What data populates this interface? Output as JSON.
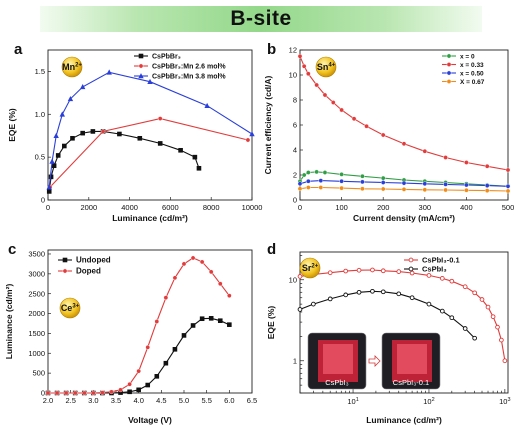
{
  "header": {
    "title": "B-site"
  },
  "colors": {
    "black": "#111111",
    "red": "#e23b3b",
    "blue": "#2a3fd8",
    "green": "#2f9e44",
    "orange": "#f08c1a",
    "grid": "#cccccc"
  },
  "panels": {
    "a": {
      "label": "a",
      "badge": "Mn2+",
      "chart_data": {
        "type": "line",
        "xlabel": "Luminance (cd/m²)",
        "ylabel": "EQE (%)",
        "xlim": [
          0,
          10000
        ],
        "ylim": [
          0,
          1.75
        ],
        "xticks": [
          0,
          2000,
          4000,
          6000,
          8000,
          10000
        ],
        "xtick_labels": [
          "0",
          "2000",
          "4000",
          "6000",
          "8000",
          "10000"
        ],
        "yticks": [
          0,
          0.5,
          1.0,
          1.5
        ],
        "ytick_labels": [
          "0",
          "0.5",
          "1.0",
          "1.5"
        ],
        "legend_position": "top-right",
        "series": [
          {
            "name": "CsPbBr₃",
            "color": "black",
            "marker": "square",
            "x": [
              60,
              150,
              300,
              500,
              800,
              1200,
              1700,
              2200,
              2700,
              3500,
              4500,
              5500,
              6500,
              7200,
              7400
            ],
            "y": [
              0.1,
              0.27,
              0.4,
              0.52,
              0.63,
              0.72,
              0.78,
              0.8,
              0.8,
              0.77,
              0.72,
              0.66,
              0.58,
              0.5,
              0.37
            ]
          },
          {
            "name": "CsPbBr₃:Mn 2.6 mol%",
            "color": "red",
            "marker": "circle",
            "x": [
              100,
              2700,
              5500,
              9800
            ],
            "y": [
              0.15,
              0.8,
              0.95,
              0.7
            ]
          },
          {
            "name": "CsPbBr₃:Mn 3.8 mol%",
            "color": "blue",
            "marker": "triangle",
            "x": [
              60,
              200,
              400,
              700,
              1100,
              1700,
              3000,
              5000,
              7800,
              10000
            ],
            "y": [
              0.15,
              0.45,
              0.75,
              1.0,
              1.18,
              1.32,
              1.49,
              1.38,
              1.1,
              0.77
            ]
          }
        ]
      }
    },
    "b": {
      "label": "b",
      "badge": "Sn4+",
      "chart_data": {
        "type": "line",
        "xlabel": "Current density (mA/cm²)",
        "ylabel": "Current efficiency (cd/A)",
        "xlim": [
          0,
          500
        ],
        "ylim": [
          0,
          12
        ],
        "xticks": [
          0,
          100,
          200,
          300,
          400,
          500
        ],
        "xtick_labels": [
          "0",
          "100",
          "200",
          "300",
          "400",
          "500"
        ],
        "yticks": [
          0,
          2,
          4,
          6,
          8,
          10,
          12
        ],
        "ytick_labels": [
          "0",
          "2",
          "4",
          "6",
          "8",
          "10",
          "12"
        ],
        "legend_position": "top-right",
        "series": [
          {
            "name": "x = 0",
            "color": "green",
            "marker": "circle",
            "x": [
              0,
              10,
              20,
              40,
              60,
              100,
              150,
              200,
              250,
              300,
              350,
              400,
              450,
              500
            ],
            "y": [
              1.5,
              2.0,
              2.2,
              2.25,
              2.2,
              2.05,
              1.9,
              1.75,
              1.6,
              1.5,
              1.4,
              1.3,
              1.2,
              1.1
            ]
          },
          {
            "name": "x = 0.33",
            "color": "red",
            "marker": "circle",
            "x": [
              0,
              10,
              20,
              40,
              60,
              80,
              100,
              130,
              160,
              200,
              250,
              300,
              350,
              400,
              450,
              500
            ],
            "y": [
              11.5,
              10.7,
              10.1,
              9.2,
              8.4,
              7.8,
              7.2,
              6.5,
              5.9,
              5.2,
              4.5,
              3.9,
              3.4,
              3.0,
              2.7,
              2.4
            ]
          },
          {
            "name": "x = 0.50",
            "color": "blue",
            "marker": "circle",
            "x": [
              0,
              20,
              50,
              100,
              150,
              200,
              250,
              300,
              350,
              400,
              450,
              500
            ],
            "y": [
              1.3,
              1.5,
              1.55,
              1.5,
              1.45,
              1.4,
              1.35,
              1.3,
              1.25,
              1.2,
              1.15,
              1.1
            ]
          },
          {
            "name": "X = 0.67",
            "color": "orange",
            "marker": "circle",
            "x": [
              0,
              20,
              50,
              100,
              150,
              200,
              250,
              300,
              350,
              400,
              450,
              500
            ],
            "y": [
              0.9,
              1.0,
              1.0,
              0.95,
              0.9,
              0.88,
              0.85,
              0.82,
              0.8,
              0.78,
              0.75,
              0.72
            ]
          }
        ]
      }
    },
    "c": {
      "label": "c",
      "badge": "Ce3+",
      "chart_data": {
        "type": "line",
        "xlabel": "Voltage (V)",
        "ylabel": "Luminance (cd/m²)",
        "xlim": [
          2.0,
          6.5
        ],
        "ylim": [
          0,
          3600
        ],
        "xticks": [
          2.0,
          2.5,
          3.0,
          3.5,
          4.0,
          4.5,
          5.0,
          5.5,
          6.0,
          6.5
        ],
        "xtick_labels": [
          "2.0",
          "2.5",
          "3.0",
          "3.5",
          "4.0",
          "4.5",
          "5.0",
          "5.5",
          "6.0",
          "6.5"
        ],
        "yticks": [
          0,
          500,
          1000,
          1500,
          2000,
          2500,
          3000,
          3500
        ],
        "ytick_labels": [
          "0",
          "500",
          "1000",
          "1500",
          "2000",
          "2500",
          "3000",
          "3500"
        ],
        "legend_position": "top-left",
        "series": [
          {
            "name": "Undoped",
            "color": "black",
            "marker": "square",
            "x": [
              2.0,
              2.2,
              2.4,
              2.6,
              2.8,
              3.0,
              3.2,
              3.4,
              3.6,
              3.8,
              4.0,
              4.2,
              4.4,
              4.6,
              4.8,
              5.0,
              5.2,
              5.4,
              5.6,
              5.8,
              6.0
            ],
            "y": [
              0,
              0,
              0,
              0,
              0,
              0,
              0,
              0,
              10,
              30,
              80,
              200,
              420,
              750,
              1100,
              1450,
              1700,
              1870,
              1880,
              1820,
              1720
            ]
          },
          {
            "name": "Doped",
            "color": "red",
            "marker": "circle",
            "x": [
              2.0,
              2.2,
              2.4,
              2.6,
              2.8,
              3.0,
              3.2,
              3.4,
              3.6,
              3.8,
              4.0,
              4.2,
              4.4,
              4.6,
              4.8,
              5.0,
              5.2,
              5.4,
              5.6,
              5.8,
              6.0
            ],
            "y": [
              0,
              0,
              0,
              0,
              0,
              0,
              10,
              30,
              80,
              220,
              550,
              1150,
              1800,
              2400,
              2900,
              3250,
              3400,
              3300,
              3050,
              2750,
              2450
            ]
          }
        ]
      }
    },
    "d": {
      "label": "d",
      "badge": "Sr2+",
      "chart_data": {
        "type": "line",
        "xlabel": "Luminance (cd/m²)",
        "ylabel": "EQE (%)",
        "xscale": "log",
        "yscale": "log",
        "xlim": [
          2,
          1100
        ],
        "ylim": [
          0.4,
          22
        ],
        "xticks": [
          10,
          100,
          1000
        ],
        "yticks": [
          1,
          10
        ],
        "legend_position": "top-right",
        "series": [
          {
            "name": "CsPbI₃-0.1",
            "color": "red",
            "marker": "open-circle",
            "x": [
              2,
              3,
              5,
              8,
              12,
              18,
              25,
              40,
              60,
              100,
              150,
              200,
              300,
              400,
              500,
              600,
              700,
              800,
              900,
              1000
            ],
            "y": [
              11,
              11.6,
              12.2,
              12.8,
              13.1,
              13.2,
              12.9,
              12.6,
              12.1,
              11.3,
              10.4,
              9.6,
              8.2,
              6.9,
              5.7,
              4.6,
              3.5,
              2.6,
              1.8,
              1.0
            ]
          },
          {
            "name": "CsPbI₃",
            "color": "black",
            "marker": "open-circle",
            "x": [
              2,
              3,
              5,
              8,
              12,
              18,
              25,
              40,
              60,
              100,
              150,
              200,
              300,
              400
            ],
            "y": [
              4.3,
              5.0,
              5.8,
              6.5,
              7.0,
              7.2,
              7.1,
              6.7,
              6.0,
              5.0,
              4.1,
              3.4,
              2.5,
              1.9
            ]
          }
        ],
        "inset_labels": [
          "CsPbI₃",
          "CsPbI₃-0.1"
        ]
      }
    }
  }
}
